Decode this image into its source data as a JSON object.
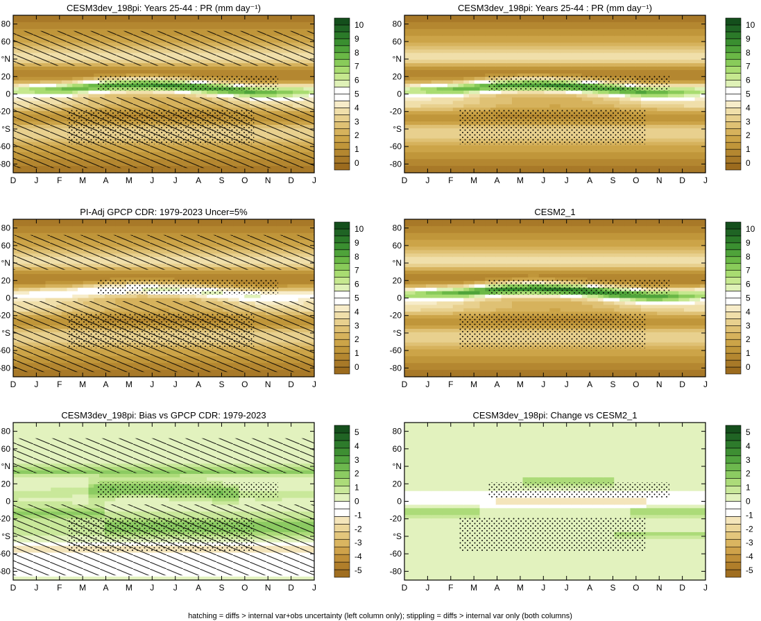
{
  "footer": "hatching = diffs > internal var+obs uncertainty (left column only); stippling = diffs > internal var only (both columns)",
  "colors": {
    "abs_scale": [
      "#9c6b1e",
      "#a87928",
      "#b48730",
      "#c0963a",
      "#cca448",
      "#d6b25c",
      "#dfc174",
      "#e8d08e",
      "#f0dfaa",
      "#f7ecc9",
      "#ffffff",
      "#ffffff",
      "#dff1b7",
      "#c6e88f",
      "#a9dc71",
      "#89cb5a",
      "#6ab846",
      "#4fa33a",
      "#3a8f30",
      "#2b7a29",
      "#1f6424",
      "#144f1c"
    ],
    "diff_scale": [
      "#a06e20",
      "#b07e2a",
      "#c08f38",
      "#cfa24a",
      "#dab560",
      "#e3c67c",
      "#ecd69a",
      "#f4e5bb",
      "#ffffff",
      "#ffffff",
      "#e2f2be",
      "#c9e89a",
      "#acdb79",
      "#8ccb62",
      "#6db84e",
      "#52a43f",
      "#3e8f33",
      "#2d7a2b",
      "#206424",
      "#154f1c"
    ]
  },
  "chart_data": [
    {
      "panel": "top-left",
      "type": "heatmap",
      "title": "CESM3dev_198pi: Years 25-44 : PR (mm day⁻¹)",
      "x_tick_labels": [
        "D",
        "J",
        "F",
        "M",
        "A",
        "M",
        "J",
        "J",
        "A",
        "S",
        "O",
        "N",
        "D",
        "J"
      ],
      "y_tick_labels": [
        "80",
        "60",
        "°N",
        "20",
        "0",
        "-20",
        "°S",
        "-60",
        "-80"
      ],
      "ylim": [
        -90,
        90
      ],
      "colorbar_labels": [
        "10",
        "9",
        "8",
        "7",
        "6",
        "5",
        "4",
        "3",
        "2",
        "1",
        "0"
      ],
      "colorbar_range": [
        -0.5,
        10.5
      ],
      "overlay": "hatching+stippling",
      "itcz_peak_mm_day": 9.5
    },
    {
      "panel": "top-right",
      "type": "heatmap",
      "title": "CESM3dev_198pi: Years 25-44 : PR (mm day⁻¹)",
      "x_tick_labels": [
        "D",
        "J",
        "F",
        "M",
        "A",
        "M",
        "J",
        "J",
        "A",
        "S",
        "O",
        "N",
        "D",
        "J"
      ],
      "y_tick_labels": [
        "80",
        "60",
        "°N",
        "20",
        "0",
        "-20",
        "°S",
        "-60",
        "-80"
      ],
      "ylim": [
        -90,
        90
      ],
      "colorbar_labels": [
        "10",
        "9",
        "8",
        "7",
        "6",
        "5",
        "4",
        "3",
        "2",
        "1",
        "0"
      ],
      "colorbar_range": [
        -0.5,
        10.5
      ],
      "overlay": "stippling",
      "itcz_peak_mm_day": 9.5
    },
    {
      "panel": "middle-left",
      "type": "heatmap",
      "title": "PI-Adj GPCP CDR: 1979-2023 Uncer=5%",
      "x_tick_labels": [
        "D",
        "J",
        "F",
        "M",
        "A",
        "M",
        "J",
        "J",
        "A",
        "S",
        "O",
        "N",
        "D",
        "J"
      ],
      "y_tick_labels": [
        "80",
        "60",
        "°N",
        "20",
        "0",
        "-20",
        "°S",
        "-60",
        "-80"
      ],
      "ylim": [
        -90,
        90
      ],
      "colorbar_labels": [
        "10",
        "9",
        "8",
        "7",
        "6",
        "5",
        "4",
        "3",
        "2",
        "1",
        "0"
      ],
      "colorbar_range": [
        -0.5,
        10.5
      ],
      "overlay": "hatching+stippling",
      "itcz_peak_mm_day": 6.5
    },
    {
      "panel": "middle-right",
      "type": "heatmap",
      "title": "CESM2_1",
      "x_tick_labels": [
        "D",
        "J",
        "F",
        "M",
        "A",
        "M",
        "J",
        "J",
        "A",
        "S",
        "O",
        "N",
        "D",
        "J"
      ],
      "y_tick_labels": [
        "80",
        "60",
        "°N",
        "20",
        "0",
        "-20",
        "°S",
        "-60",
        "-80"
      ],
      "ylim": [
        -90,
        90
      ],
      "colorbar_labels": [
        "10",
        "9",
        "8",
        "7",
        "6",
        "5",
        "4",
        "3",
        "2",
        "1",
        "0"
      ],
      "colorbar_range": [
        -0.5,
        10.5
      ],
      "overlay": "stippling",
      "itcz_peak_mm_day": 10
    },
    {
      "panel": "bottom-left",
      "type": "heatmap",
      "title": "CESM3dev_198pi: Bias vs GPCP CDR: 1979-2023",
      "x_tick_labels": [
        "D",
        "J",
        "F",
        "M",
        "A",
        "M",
        "J",
        "J",
        "A",
        "S",
        "O",
        "N",
        "D",
        "J"
      ],
      "y_tick_labels": [
        "80",
        "60",
        "°N",
        "20",
        "0",
        "-20",
        "°S",
        "-60",
        "-80"
      ],
      "ylim": [
        -90,
        90
      ],
      "colorbar_labels": [
        "5",
        "4",
        "3",
        "2",
        "1",
        "0",
        "-1",
        "-2",
        "-3",
        "-4",
        "-5"
      ],
      "colorbar_range": [
        -5.5,
        5.5
      ],
      "overlay": "hatching+stippling"
    },
    {
      "panel": "bottom-right",
      "type": "heatmap",
      "title": "CESM3dev_198pi: Change vs CESM2_1",
      "x_tick_labels": [
        "D",
        "J",
        "F",
        "M",
        "A",
        "M",
        "J",
        "J",
        "A",
        "S",
        "O",
        "N",
        "D",
        "J"
      ],
      "y_tick_labels": [
        "80",
        "60",
        "°N",
        "20",
        "0",
        "-20",
        "°S",
        "-60",
        "-80"
      ],
      "ylim": [
        -90,
        90
      ],
      "colorbar_labels": [
        "5",
        "4",
        "3",
        "2",
        "1",
        "0",
        "-1",
        "-2",
        "-3",
        "-4",
        "-5"
      ],
      "colorbar_range": [
        -5.5,
        5.5
      ],
      "overlay": "stippling"
    }
  ]
}
